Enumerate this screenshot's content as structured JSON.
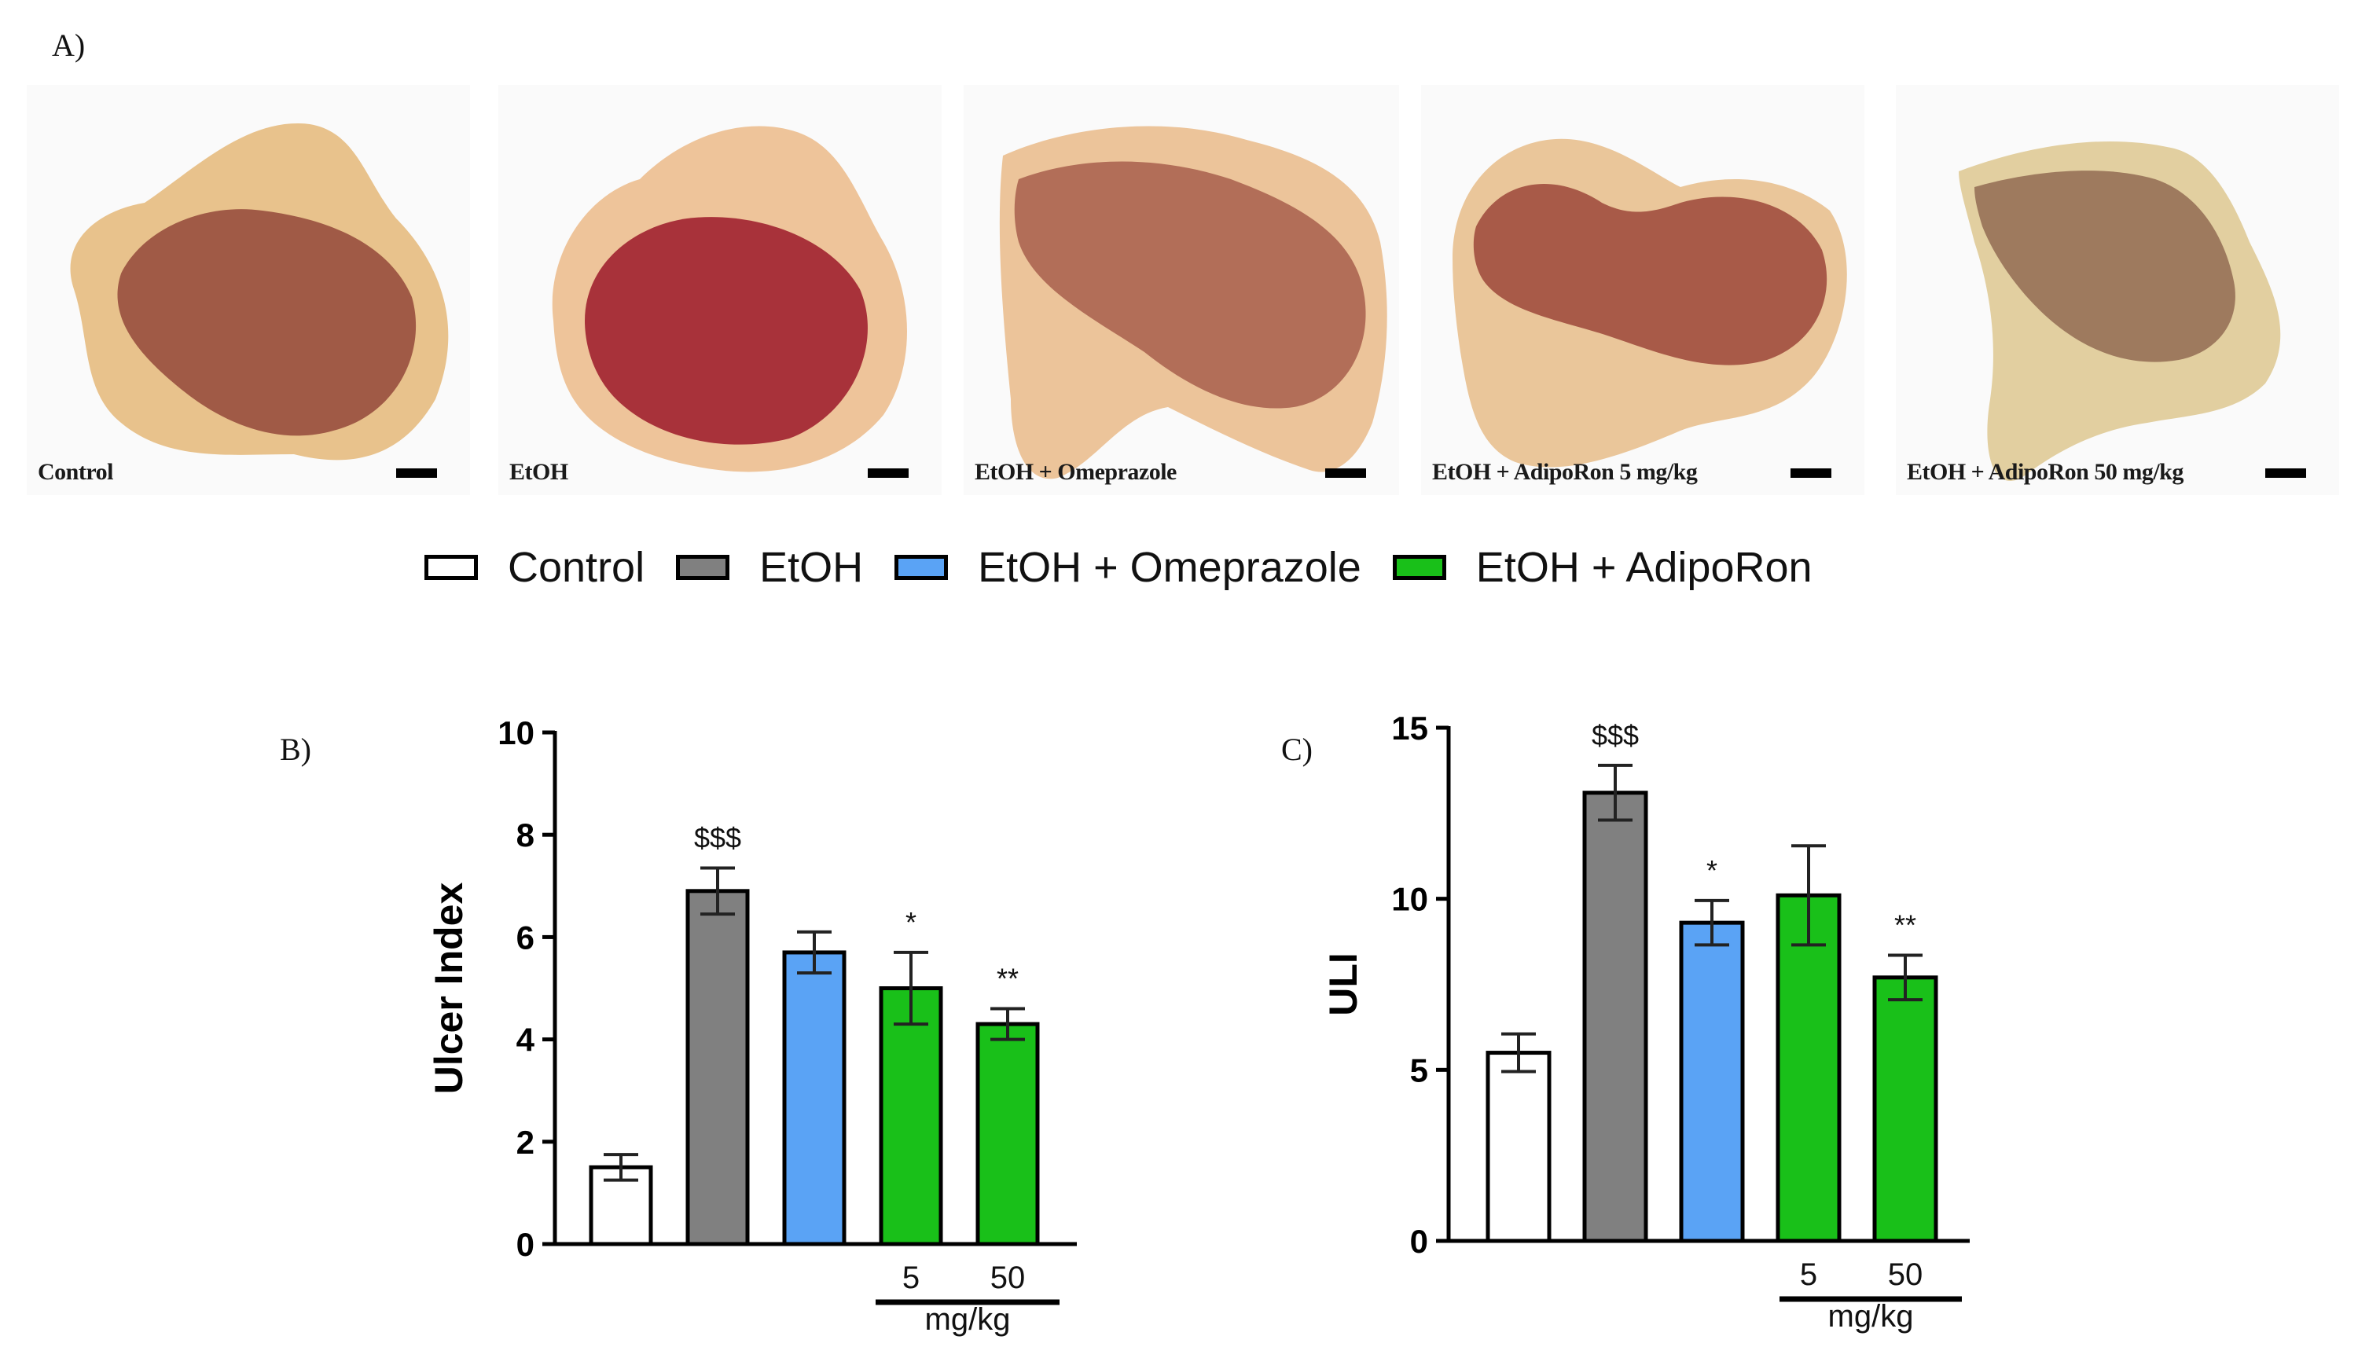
{
  "panels": {
    "a": "A)",
    "b": "B)",
    "c": "C)"
  },
  "photos": [
    {
      "label": "Control",
      "tint": "#a05a46"
    },
    {
      "label": "EtOH",
      "tint": "#a8323a"
    },
    {
      "label": "EtOH + Omeprazole",
      "tint": "#b26e58"
    },
    {
      "label": "EtOH + AdipoRon 5 mg/kg",
      "tint": "#a85a48"
    },
    {
      "label": "EtOH + AdipoRon 50 mg/kg",
      "tint": "#9e7a5e"
    }
  ],
  "legend": [
    {
      "label": "Control",
      "color": "#ffffff"
    },
    {
      "label": "EtOH",
      "color": "#808080"
    },
    {
      "label": "EtOH + Omeprazole",
      "color": "#5aa3f5"
    },
    {
      "label": "EtOH + AdipoRon",
      "color": "#19c019"
    }
  ],
  "chart_data": [
    {
      "type": "bar",
      "ylabel": "Ulcer Index",
      "ylim": [
        0,
        10
      ],
      "yticks": [
        0,
        2,
        4,
        6,
        8,
        10
      ],
      "categories": [
        "",
        "",
        "",
        "5",
        "50"
      ],
      "group_label": "mg/kg",
      "colors": [
        "#ffffff",
        "#808080",
        "#5aa3f5",
        "#19c019",
        "#19c019"
      ],
      "values": [
        1.5,
        6.9,
        5.7,
        5.0,
        4.3
      ],
      "errors": [
        0.25,
        0.45,
        0.4,
        0.7,
        0.3
      ],
      "annotations": [
        "",
        "$$$",
        "",
        "*",
        "**"
      ]
    },
    {
      "type": "bar",
      "ylabel": "ULI",
      "ylim": [
        0,
        15
      ],
      "yticks": [
        0,
        5,
        10,
        15
      ],
      "categories": [
        "",
        "",
        "",
        "5",
        "50"
      ],
      "group_label": "mg/kg",
      "colors": [
        "#ffffff",
        "#808080",
        "#5aa3f5",
        "#19c019",
        "#19c019"
      ],
      "values": [
        5.5,
        13.1,
        9.3,
        10.1,
        7.7
      ],
      "errors": [
        0.55,
        0.8,
        0.65,
        1.45,
        0.65
      ],
      "annotations": [
        "",
        "$$$",
        "*",
        "",
        "**"
      ]
    }
  ]
}
